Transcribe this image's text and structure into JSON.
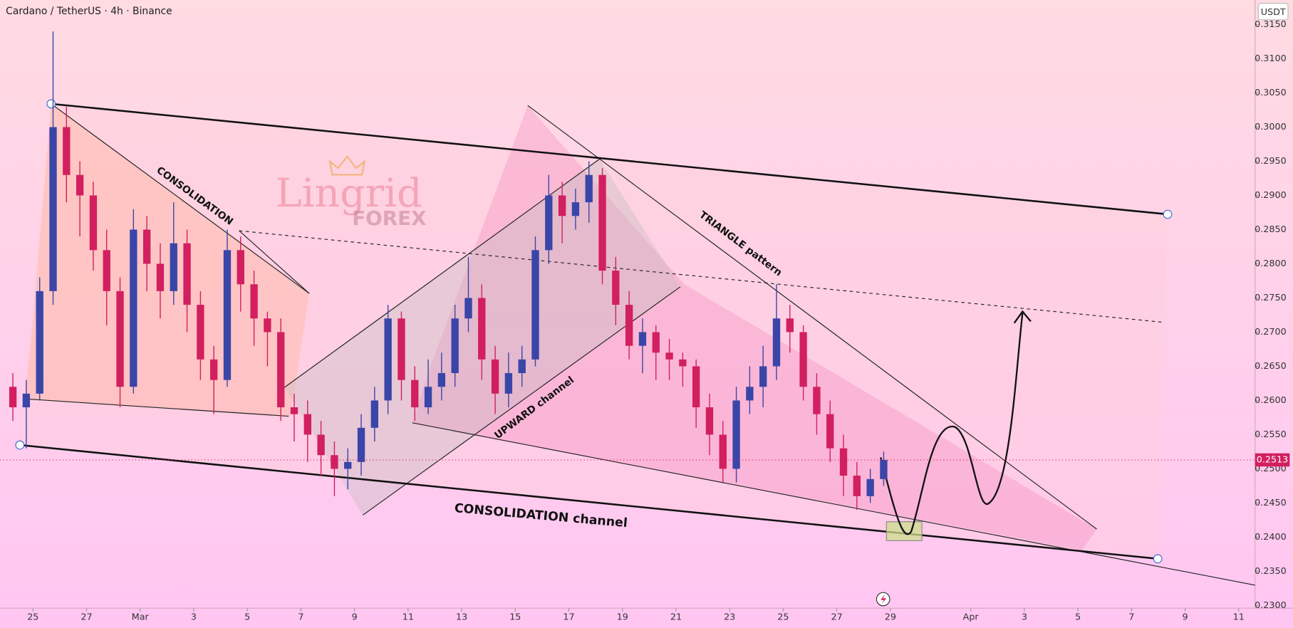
{
  "chart_data": {
    "type": "candlestick",
    "title": "Cardano / TetherUS · 4h · Binance",
    "currency": "USDT",
    "last_price": 0.2513,
    "up_color": "#3a45a8",
    "down_color": "#d21f5f",
    "xlim": [
      23.77,
      70.61
    ],
    "ylim": [
      0.2296,
      0.3186
    ],
    "xticks": [
      {
        "value": 25,
        "label": "25"
      },
      {
        "value": 27,
        "label": "27"
      },
      {
        "value": 29,
        "label": "Mar"
      },
      {
        "value": 31,
        "label": "3"
      },
      {
        "value": 33,
        "label": "5"
      },
      {
        "value": 35,
        "label": "7"
      },
      {
        "value": 37,
        "label": "9"
      },
      {
        "value": 39,
        "label": "11"
      },
      {
        "value": 41,
        "label": "13"
      },
      {
        "value": 43,
        "label": "15"
      },
      {
        "value": 45,
        "label": "17"
      },
      {
        "value": 47,
        "label": "19"
      },
      {
        "value": 49,
        "label": "21"
      },
      {
        "value": 51,
        "label": "23"
      },
      {
        "value": 53,
        "label": "25"
      },
      {
        "value": 55,
        "label": "27"
      },
      {
        "value": 57,
        "label": "29"
      },
      {
        "value": 60,
        "label": "Apr"
      },
      {
        "value": 62,
        "label": "3"
      },
      {
        "value": 64,
        "label": "5"
      },
      {
        "value": 66,
        "label": "7"
      },
      {
        "value": 68,
        "label": "9"
      },
      {
        "value": 70,
        "label": "11"
      }
    ],
    "yticks": [
      {
        "value": 0.23,
        "label": "0.2300"
      },
      {
        "value": 0.235,
        "label": "0.2350"
      },
      {
        "value": 0.24,
        "label": "0.2400"
      },
      {
        "value": 0.245,
        "label": "0.2450"
      },
      {
        "value": 0.25,
        "label": "0.2500"
      },
      {
        "value": 0.255,
        "label": "0.2550"
      },
      {
        "value": 0.26,
        "label": "0.2600"
      },
      {
        "value": 0.265,
        "label": "0.2650"
      },
      {
        "value": 0.27,
        "label": "0.2700"
      },
      {
        "value": 0.275,
        "label": "0.2750"
      },
      {
        "value": 0.28,
        "label": "0.2800"
      },
      {
        "value": 0.285,
        "label": "0.2850"
      },
      {
        "value": 0.29,
        "label": "0.2900"
      },
      {
        "value": 0.295,
        "label": "0.2950"
      },
      {
        "value": 0.3,
        "label": "0.3000"
      },
      {
        "value": 0.305,
        "label": "0.3050"
      },
      {
        "value": 0.31,
        "label": "0.3100"
      },
      {
        "value": 0.315,
        "label": "0.3150"
      }
    ],
    "x": [
      24.25,
      24.75,
      25.25,
      25.75,
      26.25,
      26.75,
      27.25,
      27.75,
      28.25,
      28.75,
      29.25,
      29.75,
      30.25,
      30.75,
      31.25,
      31.75,
      32.25,
      32.75,
      33.25,
      33.75,
      34.25,
      34.75,
      35.25,
      35.75,
      36.25,
      36.75,
      37.25,
      37.75,
      38.25,
      38.75,
      39.25,
      39.75,
      40.25,
      40.75,
      41.25,
      41.75,
      42.25,
      42.75,
      43.25,
      43.75,
      44.25,
      44.75,
      45.25,
      45.75,
      46.25,
      46.75,
      47.25,
      47.75,
      48.25,
      48.75,
      49.25,
      49.75,
      50.25,
      50.75,
      51.25,
      51.75,
      52.25,
      52.75,
      53.25,
      53.75,
      54.25,
      54.75,
      55.25,
      55.75,
      56.25,
      56.75
    ],
    "open": [
      0.262,
      0.259,
      0.261,
      0.276,
      0.3,
      0.293,
      0.29,
      0.282,
      0.276,
      0.262,
      0.285,
      0.28,
      0.276,
      0.283,
      0.274,
      0.266,
      0.263,
      0.282,
      0.277,
      0.272,
      0.27,
      0.259,
      0.258,
      0.255,
      0.252,
      0.25,
      0.251,
      0.256,
      0.26,
      0.272,
      0.263,
      0.259,
      0.262,
      0.264,
      0.272,
      0.275,
      0.266,
      0.261,
      0.264,
      0.266,
      0.282,
      0.29,
      0.287,
      0.289,
      0.293,
      0.279,
      0.274,
      0.268,
      0.27,
      0.267,
      0.266,
      0.265,
      0.259,
      0.255,
      0.25,
      0.26,
      0.262,
      0.265,
      0.272,
      0.27,
      0.262,
      0.258,
      0.253,
      0.249,
      0.246,
      0.2485
    ],
    "high": [
      0.264,
      0.263,
      0.278,
      0.314,
      0.303,
      0.295,
      0.292,
      0.285,
      0.278,
      0.288,
      0.287,
      0.283,
      0.289,
      0.285,
      0.276,
      0.268,
      0.285,
      0.284,
      0.279,
      0.273,
      0.272,
      0.261,
      0.26,
      0.257,
      0.254,
      0.253,
      0.258,
      0.262,
      0.274,
      0.273,
      0.265,
      0.266,
      0.267,
      0.274,
      0.281,
      0.277,
      0.268,
      0.267,
      0.268,
      0.284,
      0.293,
      0.292,
      0.291,
      0.295,
      0.294,
      0.281,
      0.276,
      0.272,
      0.271,
      0.269,
      0.267,
      0.266,
      0.261,
      0.257,
      0.262,
      0.265,
      0.268,
      0.277,
      0.274,
      0.271,
      0.264,
      0.26,
      0.255,
      0.251,
      0.25,
      0.2525
    ],
    "low": [
      0.257,
      0.253,
      0.26,
      0.274,
      0.289,
      0.284,
      0.279,
      0.271,
      0.259,
      0.261,
      0.276,
      0.272,
      0.274,
      0.27,
      0.263,
      0.258,
      0.262,
      0.273,
      0.268,
      0.265,
      0.257,
      0.254,
      0.251,
      0.249,
      0.246,
      0.247,
      0.249,
      0.254,
      0.258,
      0.26,
      0.257,
      0.258,
      0.26,
      0.262,
      0.27,
      0.263,
      0.258,
      0.259,
      0.262,
      0.265,
      0.28,
      0.283,
      0.285,
      0.286,
      0.277,
      0.271,
      0.266,
      0.264,
      0.263,
      0.263,
      0.262,
      0.256,
      0.252,
      0.248,
      0.248,
      0.258,
      0.259,
      0.263,
      0.267,
      0.26,
      0.255,
      0.251,
      0.246,
      0.244,
      0.245,
      0.2475
    ],
    "close": [
      0.259,
      0.261,
      0.276,
      0.3,
      0.293,
      0.29,
      0.282,
      0.276,
      0.262,
      0.285,
      0.28,
      0.276,
      0.283,
      0.274,
      0.266,
      0.263,
      0.282,
      0.277,
      0.272,
      0.27,
      0.259,
      0.258,
      0.255,
      0.252,
      0.25,
      0.251,
      0.256,
      0.26,
      0.272,
      0.263,
      0.259,
      0.262,
      0.264,
      0.272,
      0.275,
      0.266,
      0.261,
      0.264,
      0.266,
      0.282,
      0.29,
      0.287,
      0.289,
      0.293,
      0.279,
      0.274,
      0.268,
      0.27,
      0.267,
      0.266,
      0.265,
      0.259,
      0.255,
      0.25,
      0.26,
      0.262,
      0.265,
      0.272,
      0.27,
      0.262,
      0.258,
      0.253,
      0.249,
      0.246,
      0.2485,
      0.2513
    ],
    "annotations": [
      "CONSOLIDATION",
      "TRIANGLE pattern",
      "UPWARD channel",
      "CONSOLIDATION channel"
    ],
    "watermark": [
      "Lingrid",
      "FOREX"
    ]
  }
}
